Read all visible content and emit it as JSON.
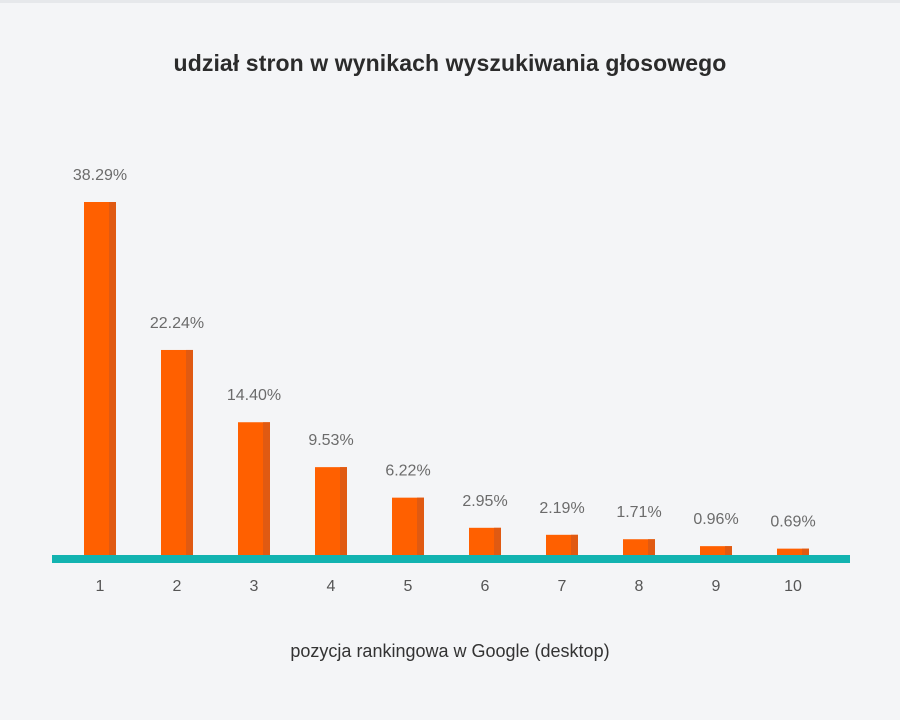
{
  "chart_data": {
    "type": "bar",
    "title": "udział stron w wynikach wyszukiwania głosowego",
    "xlabel": "pozycja rankingowa w Google (desktop)",
    "ylabel": "",
    "categories": [
      "1",
      "2",
      "3",
      "4",
      "5",
      "6",
      "7",
      "8",
      "9",
      "10"
    ],
    "values": [
      38.29,
      22.24,
      14.4,
      9.53,
      6.22,
      2.95,
      2.19,
      1.71,
      0.96,
      0.69
    ],
    "value_labels": [
      "38.29%",
      "22.24%",
      "14.40%",
      "9.53%",
      "6.22%",
      "2.95%",
      "2.19%",
      "1.71%",
      "0.96%",
      "0.69%"
    ],
    "ylim": [
      0,
      38.29
    ],
    "grid": false,
    "legend": "none",
    "colors": {
      "bar": "#ff6000",
      "bar_shade": "#e05a12",
      "baseline": "#12b3b0",
      "background": "#f4f5f7"
    }
  }
}
